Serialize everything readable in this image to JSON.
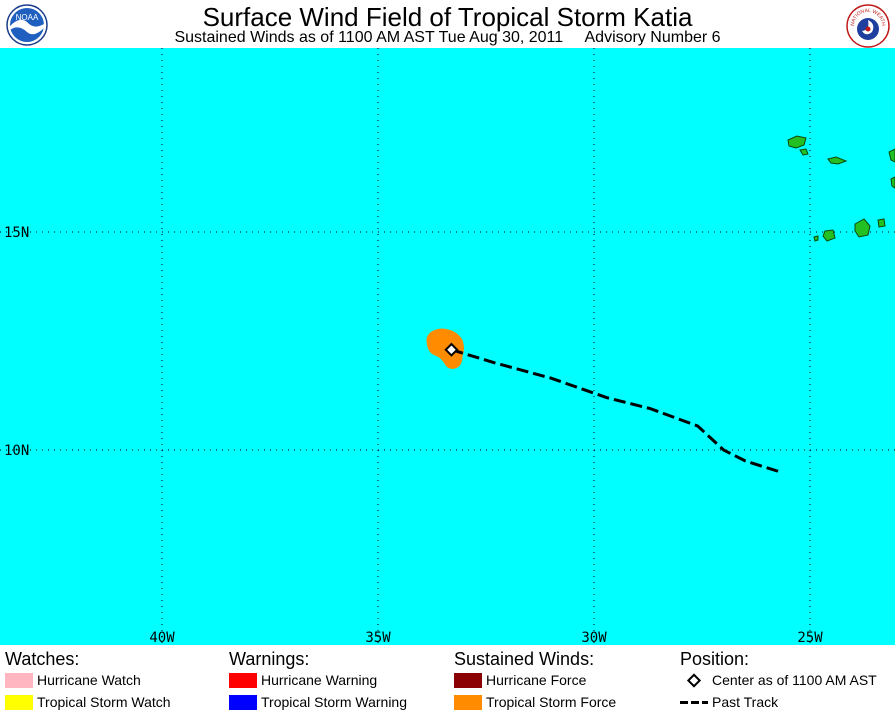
{
  "header": {
    "title": "Surface Wind Field of Tropical Storm Katia",
    "subtitle": "Sustained Winds as of 1100 AM AST Tue Aug 30, 2011     Advisory Number 6"
  },
  "logos": {
    "left": {
      "text": "NOAA",
      "icon": "noaa-logo"
    },
    "right": {
      "text": "NATIONAL WEATHER SERVICE",
      "icon": "nws-logo"
    }
  },
  "map": {
    "ocean_color": "#00ffff",
    "land_color": "#22c022",
    "longitude_labels": [
      "40W",
      "35W",
      "30W",
      "25W"
    ],
    "latitude_labels": [
      "15N",
      "10N"
    ],
    "storm_center": {
      "lon": -33.3,
      "lat": 12.3
    },
    "past_track": [
      {
        "lon": -33.3,
        "lat": 12.3
      },
      {
        "lon": -32.3,
        "lat": 12.0
      },
      {
        "lon": -31.0,
        "lat": 11.65
      },
      {
        "lon": -29.7,
        "lat": 11.2
      },
      {
        "lon": -28.7,
        "lat": 10.95
      },
      {
        "lon": -27.6,
        "lat": 10.55
      },
      {
        "lon": -27.0,
        "lat": 10.0
      },
      {
        "lon": -26.5,
        "lat": 9.75
      },
      {
        "lon": -25.7,
        "lat": 9.5
      }
    ]
  },
  "legend": {
    "watches": {
      "heading": "Watches:",
      "items": [
        {
          "label": "Hurricane Watch",
          "color": "#ffb6c1"
        },
        {
          "label": "Tropical Storm Watch",
          "color": "#ffff00"
        }
      ]
    },
    "warnings": {
      "heading": "Warnings:",
      "items": [
        {
          "label": "Hurricane Warning",
          "color": "#ff0000"
        },
        {
          "label": "Tropical Storm Warning",
          "color": "#0000ff"
        }
      ]
    },
    "winds": {
      "heading": "Sustained Winds:",
      "items": [
        {
          "label": "Hurricane Force",
          "color": "#8b0000"
        },
        {
          "label": "Tropical Storm Force",
          "color": "#ff8c00"
        }
      ]
    },
    "position": {
      "heading": "Position:",
      "items": [
        {
          "label": "Center as of 1100 AM AST",
          "icon": "diamond-icon"
        },
        {
          "label": "Past Track",
          "icon": "dashed-line-icon"
        }
      ]
    }
  }
}
